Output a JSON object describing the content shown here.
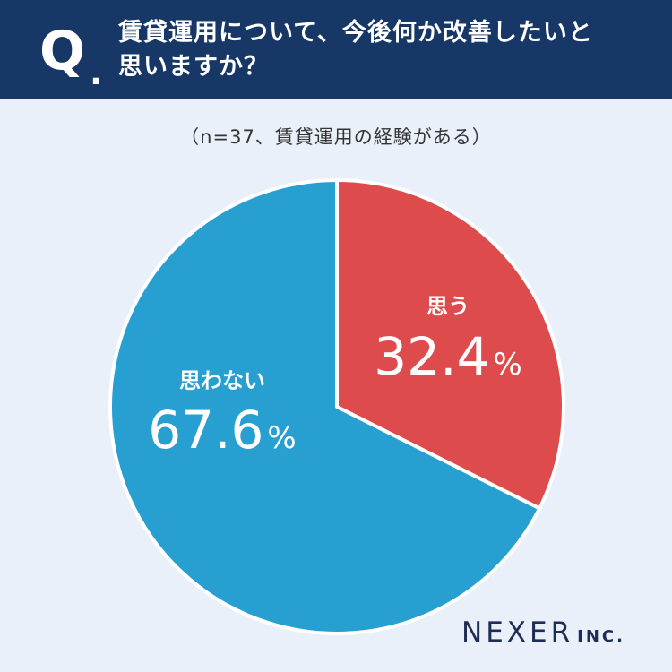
{
  "header": {
    "q_letter": "Q",
    "q_dot": ".",
    "question_line1": "賃貸運用について、今後何か改善したいと",
    "question_line2": "思いますか？"
  },
  "subtitle": "（n=37、賃貸運用の経験がある）",
  "logo": {
    "main": "NEXER",
    "sub": "INC."
  },
  "colors": {
    "header_bg": "#173766",
    "page_bg": "#e9f0f9",
    "yes": "#de4b4d",
    "no": "#279fd0"
  },
  "chart_data": {
    "type": "pie",
    "title": "賃貸運用について、今後何か改善したいと思いますか？",
    "subtitle": "（n=37、賃貸運用の経験がある）",
    "start": "12 o'clock, clockwise",
    "slices": [
      {
        "label": "思う",
        "value": 32.4,
        "display": "32.4",
        "unit": "%",
        "color": "#de4b4d"
      },
      {
        "label": "思わない",
        "value": 67.6,
        "display": "67.6",
        "unit": "%",
        "color": "#279fd0"
      }
    ]
  }
}
